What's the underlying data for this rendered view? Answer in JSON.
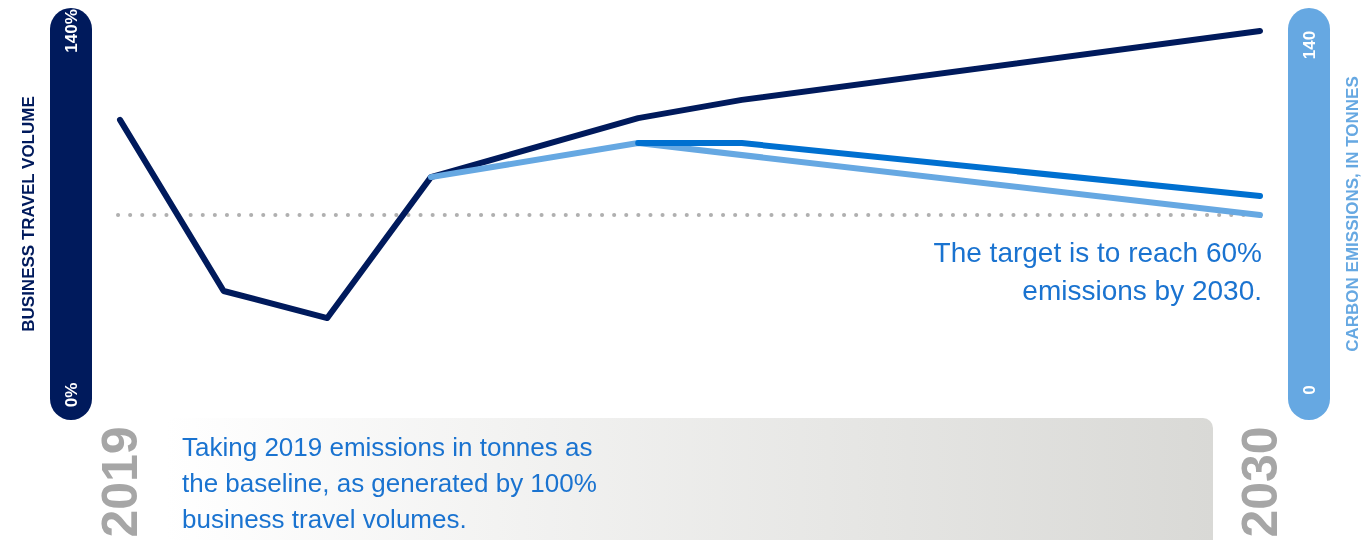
{
  "chart_data": {
    "type": "line",
    "xlabel": null,
    "ylabel": "BUSINESS TRAVEL VOLUME",
    "y2label": "CARBON EMISSIONS, IN TONNES",
    "xlim": [
      2019,
      2030
    ],
    "xticks": [
      2019,
      2030
    ],
    "ylim": [
      0,
      140
    ],
    "yticks": [
      {
        "value": 0,
        "label": "0%"
      },
      {
        "value": 140,
        "label": "140%"
      }
    ],
    "y2lim": [
      0,
      140
    ],
    "y2ticks": [
      0,
      140
    ],
    "series": [
      {
        "color": "#001a5c",
        "x": [
          2019,
          2020,
          2021,
          2022,
          2024,
          2025,
          2030
        ],
        "values": [
          105.8,
          40,
          29.6,
          83.8,
          106.5,
          113.5,
          140
        ]
      },
      {
        "color": "#66a8e2",
        "axis": "y2",
        "x": [
          2022,
          2024,
          2030
        ],
        "values": [
          86.4,
          100.2,
          71
        ]
      },
      {
        "color": "#0070d0",
        "axis": "y2",
        "x": [
          2024,
          2025,
          2030
        ],
        "values": [
          100.2,
          100.2,
          78.7
        ]
      }
    ],
    "ref_lines": [
      {
        "axis": "y",
        "value": 69.2,
        "color": "#b0b0b0",
        "line_style": "dotted"
      }
    ],
    "marker": "none",
    "line_style": "solid",
    "annotations": [
      "The target is to reach 60% emissions by 2030.",
      "Taking 2019 emissions in tonnes as the baseline, as generated by 100% business travel volumes."
    ]
  }
}
